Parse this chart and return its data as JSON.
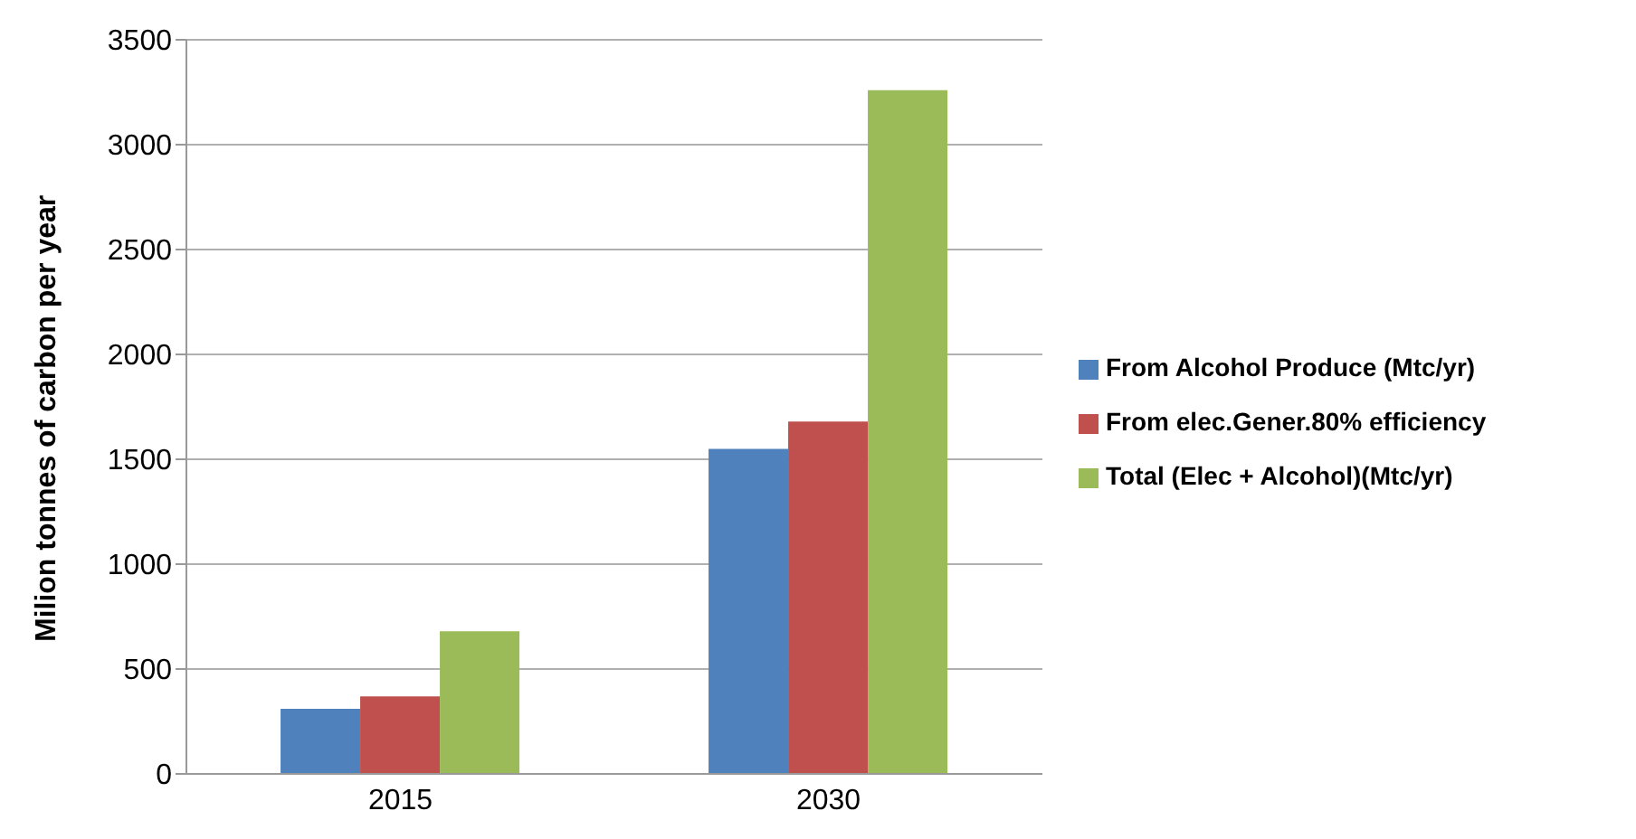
{
  "chart_data": {
    "type": "bar",
    "ylabel": "Milion tonnes of carbon per year",
    "categories": [
      "2015",
      "2030"
    ],
    "series": [
      {
        "name": "From Alcohol Produce (Mtc/yr)",
        "color": "#4f81bd",
        "values": [
          310,
          1550
        ]
      },
      {
        "name": "From elec.Gener.80% efficiency",
        "color": "#c0504d",
        "values": [
          370,
          1680
        ]
      },
      {
        "name": "Total (Elec + Alcohol)(Mtc/yr)",
        "color": "#9bbb59",
        "values": [
          680,
          3260
        ]
      }
    ],
    "ylim": [
      0,
      3500
    ],
    "yticks": [
      0,
      500,
      1000,
      1500,
      2000,
      2500,
      3000,
      3500
    ],
    "grid": "y",
    "legend": "right"
  }
}
